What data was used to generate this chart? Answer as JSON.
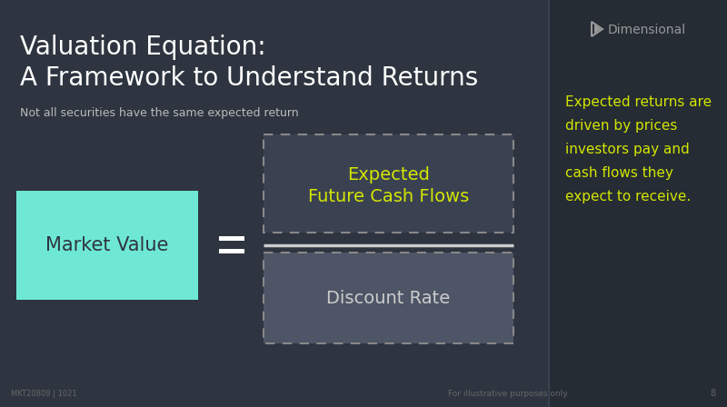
{
  "bg_color": "#2e3540",
  "bg_color_right": "#252c34",
  "title_line1": "Valuation Equation:",
  "title_line2": "A Framework to Understand Returns",
  "subtitle": "Not all securities have the same expected return",
  "title_color": "#ffffff",
  "subtitle_color": "#bbbbbb",
  "market_value_label": "Market Value",
  "market_value_bg": "#6ee8d4",
  "market_value_text_color": "#2e3540",
  "equals_color": "#ffffff",
  "numerator_label_line1": "Expected",
  "numerator_label_line2": "Future Cash Flows",
  "numerator_text_color": "#d4e600",
  "numerator_box_color": "#3a4252",
  "numerator_border_color": "#888888",
  "divider_color": "#cccccc",
  "denominator_label": "Discount Rate",
  "denominator_text_color": "#cccccc",
  "denominator_box_color": "#4d5566",
  "denominator_border_color": "#888888",
  "right_text_line1": "Expected returns are",
  "right_text_line2": "driven by prices",
  "right_text_line3": "investors pay and",
  "right_text_line4": "cash flows they",
  "right_text_line5": "expect to receive.",
  "right_text_color": "#d4e600",
  "brand_text": "Dimensional",
  "brand_color": "#999999",
  "footer_left": "MKT20809 | 1021",
  "footer_right": "For illustrative purposes only.",
  "footer_page": "8",
  "footer_color": "#666666",
  "panel_split": 0.755
}
